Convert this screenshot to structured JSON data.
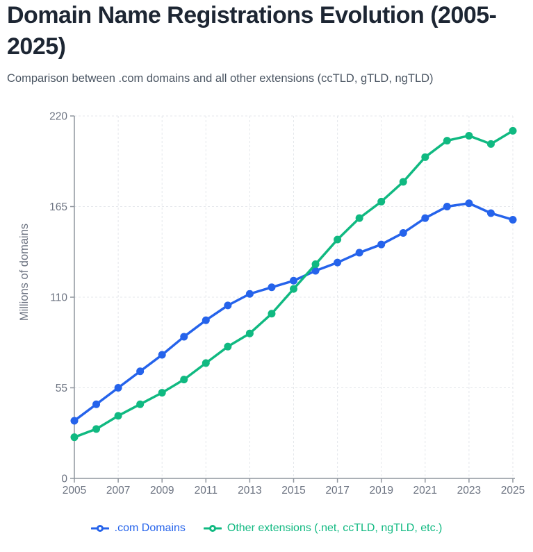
{
  "header": {
    "title": "Domain Name Registrations Evolution (2005-2025)",
    "subtitle": "Comparison between .com domains and all other extensions (ccTLD, gTLD, ngTLD)"
  },
  "chart_data": {
    "type": "line",
    "title": "Domain Name Registrations Evolution (2005-2025)",
    "xlabel": "",
    "ylabel": "Millions of domains",
    "x": [
      2005,
      2006,
      2007,
      2008,
      2009,
      2010,
      2011,
      2012,
      2013,
      2014,
      2015,
      2016,
      2017,
      2018,
      2019,
      2020,
      2021,
      2022,
      2023,
      2024,
      2025
    ],
    "series": [
      {
        "name": ".com Domains",
        "color": "#2563eb",
        "values": [
          35,
          45,
          55,
          65,
          75,
          86,
          96,
          105,
          112,
          116,
          120,
          126,
          131,
          137,
          142,
          149,
          158,
          165,
          167,
          161,
          157
        ]
      },
      {
        "name": "Other extensions (.net, ccTLD, ngTLD, etc.)",
        "color": "#10b981",
        "values": [
          25,
          30,
          38,
          45,
          52,
          60,
          70,
          80,
          88,
          100,
          115,
          130,
          145,
          158,
          168,
          180,
          195,
          205,
          208,
          203,
          211
        ]
      }
    ],
    "xlim": [
      2005,
      2025
    ],
    "ylim": [
      0,
      220
    ],
    "yticks": [
      0,
      55,
      110,
      165,
      220
    ],
    "xticks": [
      2005,
      2007,
      2009,
      2011,
      2013,
      2015,
      2017,
      2019,
      2021,
      2023,
      2025
    ],
    "grid": "dashed",
    "legend_position": "bottom"
  },
  "colors": {
    "axis": "#8f959e",
    "grid": "#e4e7eb",
    "tick_text": "#6b7280",
    "axis_label_text": "#6b7280",
    "title_text": "#1d2633",
    "subtitle_text": "#4a5562",
    "background": "#ffffff"
  }
}
